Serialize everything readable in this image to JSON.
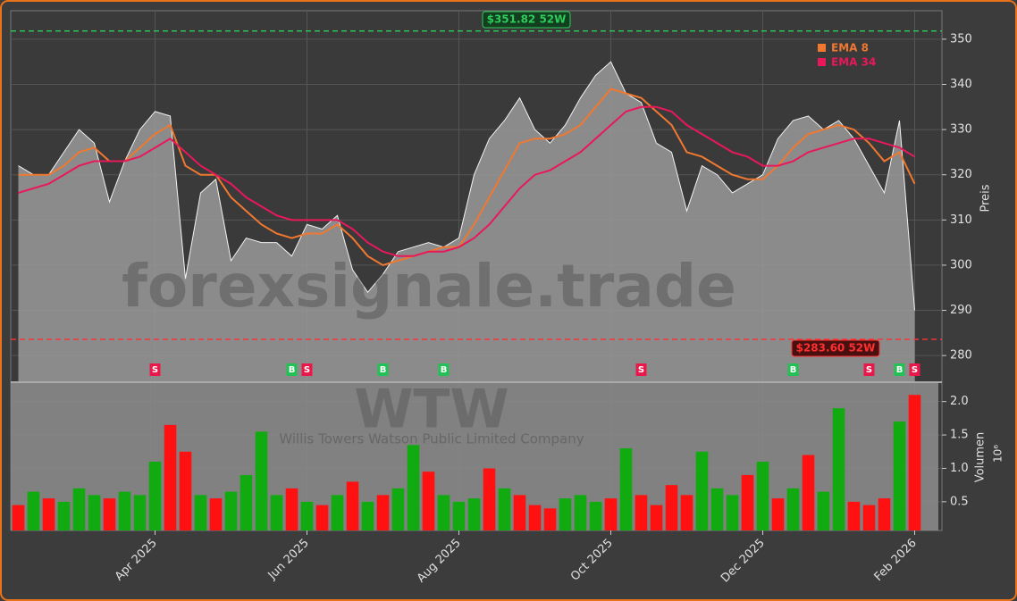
{
  "chart_data": {
    "type": "stock",
    "watermark": "forexsignale.trade",
    "ticker": "WTW",
    "company": "Willis Towers Watson Public Limited Company",
    "ylabel": "Preis",
    "y2label": "Volumen",
    "y2unit": "10⁶",
    "categories": [
      null,
      null,
      null,
      null,
      null,
      null,
      null,
      null,
      null,
      "Apr 2025",
      null,
      null,
      null,
      null,
      null,
      null,
      null,
      null,
      null,
      "Jun 2025",
      null,
      null,
      null,
      null,
      null,
      null,
      null,
      null,
      null,
      "Aug 2025",
      null,
      null,
      null,
      null,
      null,
      null,
      null,
      null,
      null,
      "Oct 2025",
      null,
      null,
      null,
      null,
      null,
      null,
      null,
      null,
      null,
      "Dec 2025",
      null,
      null,
      null,
      null,
      null,
      null,
      null,
      null,
      null,
      "Feb 2026"
    ],
    "close": {
      "color": "#9a9a9a",
      "values": [
        322,
        320,
        320,
        325,
        330,
        327,
        314,
        323,
        330,
        334,
        333,
        297,
        316,
        319,
        301,
        306,
        305,
        305,
        302,
        309,
        308,
        311,
        299,
        294,
        298,
        303,
        304,
        305,
        304,
        306,
        320,
        328,
        332,
        337,
        330,
        327,
        331,
        337,
        342,
        345,
        338,
        336,
        327,
        325,
        312,
        322,
        320,
        316,
        318,
        320,
        328,
        332,
        333,
        330,
        332,
        328,
        322,
        316,
        332,
        290
      ]
    },
    "series": [
      {
        "name": "EMA 8",
        "color": "#f07830",
        "values": [
          320,
          320,
          320,
          322,
          325,
          326,
          323,
          323,
          326,
          329,
          331,
          322,
          320,
          320,
          315,
          312,
          309,
          307,
          306,
          307,
          307,
          309,
          306,
          302,
          300,
          301,
          302,
          303,
          304,
          304,
          309,
          315,
          321,
          327,
          328,
          328,
          329,
          331,
          335,
          339,
          338,
          337,
          334,
          331,
          325,
          324,
          322,
          320,
          319,
          319,
          322,
          326,
          329,
          330,
          331,
          330,
          327,
          323,
          325,
          318
        ]
      },
      {
        "name": "EMA 34",
        "color": "#e8185a",
        "values": [
          316,
          317,
          318,
          320,
          322,
          323,
          323,
          323,
          324,
          326,
          328,
          325,
          322,
          320,
          318,
          315,
          313,
          311,
          310,
          310,
          310,
          310,
          308,
          305,
          303,
          302,
          302,
          303,
          303,
          304,
          306,
          309,
          313,
          317,
          320,
          321,
          323,
          325,
          328,
          331,
          334,
          335,
          335,
          334,
          331,
          329,
          327,
          325,
          324,
          322,
          322,
          323,
          325,
          326,
          327,
          328,
          328,
          327,
          326,
          324
        ]
      }
    ],
    "volume": {
      "values": [
        0.45,
        0.65,
        0.55,
        0.5,
        0.7,
        0.6,
        0.55,
        0.65,
        0.6,
        1.1,
        1.65,
        1.25,
        0.6,
        0.55,
        0.65,
        0.9,
        1.55,
        0.6,
        0.7,
        0.5,
        0.45,
        0.6,
        0.8,
        0.5,
        0.6,
        0.7,
        1.35,
        0.95,
        0.6,
        0.5,
        0.55,
        1.0,
        0.7,
        0.6,
        0.45,
        0.4,
        0.55,
        0.6,
        0.5,
        0.55,
        1.3,
        0.6,
        0.45,
        0.75,
        0.6,
        1.25,
        0.7,
        0.6,
        0.9,
        1.1,
        0.55,
        0.7,
        1.2,
        0.65,
        1.9,
        0.5,
        0.45,
        0.55,
        1.7,
        2.1
      ],
      "colors": [
        "#f11",
        "#1a1",
        "#f11",
        "#1a1",
        "#1a1",
        "#1a1",
        "#f11",
        "#1a1",
        "#1a1",
        "#1a1",
        "#f11",
        "#f11",
        "#1a1",
        "#f11",
        "#1a1",
        "#1a1",
        "#1a1",
        "#1a1",
        "#f11",
        "#1a1",
        "#f11",
        "#1a1",
        "#f11",
        "#1a1",
        "#f11",
        "#1a1",
        "#1a1",
        "#f11",
        "#1a1",
        "#1a1",
        "#1a1",
        "#f11",
        "#1a1",
        "#f11",
        "#f11",
        "#f11",
        "#1a1",
        "#1a1",
        "#1a1",
        "#f11",
        "#1a1",
        "#f11",
        "#f11",
        "#f11",
        "#f11",
        "#1a1",
        "#1a1",
        "#1a1",
        "#f11",
        "#1a1",
        "#f11",
        "#1a1",
        "#f11",
        "#1a1",
        "#1a1",
        "#f11",
        "#f11",
        "#f11",
        "#1a1",
        "#f11"
      ]
    },
    "signals": [
      null,
      null,
      null,
      null,
      null,
      null,
      null,
      null,
      null,
      "S",
      null,
      null,
      null,
      null,
      null,
      null,
      null,
      null,
      "B",
      "S",
      null,
      null,
      null,
      null,
      "B",
      null,
      null,
      null,
      "B",
      null,
      null,
      null,
      null,
      null,
      null,
      null,
      null,
      null,
      null,
      null,
      null,
      "S",
      null,
      null,
      null,
      null,
      null,
      null,
      null,
      null,
      null,
      "B",
      null,
      null,
      null,
      null,
      "S",
      null,
      "B",
      "S"
    ],
    "high_52w": {
      "value": 351.82,
      "label": "$351.82 52W"
    },
    "low_52w": {
      "value": 283.6,
      "label": "$283.60 52W"
    },
    "ylim": [
      274.1,
      356.3
    ],
    "yticks": [
      280,
      290,
      300,
      310,
      320,
      330,
      340,
      350
    ],
    "y2lim": [
      0.07,
      2.29
    ],
    "y2ticks": [
      0.5,
      {
        "value": 1,
        "label": "1.0"
      },
      1.5,
      {
        "value": 2,
        "label": "2.0"
      }
    ],
    "grid": true
  }
}
